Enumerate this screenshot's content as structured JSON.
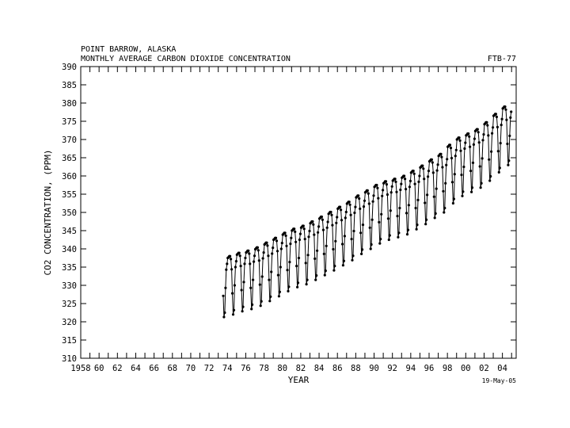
{
  "header": {
    "title": "POINT BARROW, ALASKA",
    "subtitle": "MONTHLY AVERAGE CARBON DIOXIDE CONCENTRATION",
    "code": "FTB-77",
    "date_stamp": "19-May-05"
  },
  "chart_data": {
    "type": "line",
    "xlabel": "YEAR",
    "ylabel": "CO2 CONCENTRATION, (PPM)",
    "xlim": [
      1958,
      2005.5
    ],
    "ylim": [
      310,
      390
    ],
    "x_tick_labels": [
      "1958",
      "60",
      "62",
      "64",
      "66",
      "68",
      "70",
      "72",
      "74",
      "76",
      "78",
      "80",
      "82",
      "84",
      "86",
      "88",
      "90",
      "92",
      "94",
      "96",
      "98",
      "00",
      "02",
      "04"
    ],
    "x_tick_values": [
      1958,
      1960,
      1962,
      1964,
      1966,
      1968,
      1970,
      1972,
      1974,
      1976,
      1978,
      1980,
      1982,
      1984,
      1986,
      1988,
      1990,
      1992,
      1994,
      1996,
      1998,
      2000,
      2002,
      2004
    ],
    "y_tick_labels": [
      "310",
      "315",
      "320",
      "325",
      "330",
      "335",
      "340",
      "345",
      "350",
      "355",
      "360",
      "365",
      "370",
      "375",
      "380",
      "385",
      "390"
    ],
    "y_tick_values": [
      310,
      315,
      320,
      325,
      330,
      335,
      340,
      345,
      350,
      355,
      360,
      365,
      370,
      375,
      380,
      385,
      390
    ],
    "grid": false,
    "marker": "dot",
    "series": [
      {
        "years": [
          1973,
          1974,
          1975,
          1976,
          1977,
          1978,
          1979,
          1980,
          1981,
          1982,
          1983,
          1984,
          1985,
          1986,
          1987,
          1988,
          1989,
          1990,
          1991,
          1992,
          1993,
          1994,
          1995,
          1996,
          1997,
          1998,
          1999,
          2000,
          2001,
          2002,
          2003,
          2004
        ],
        "monthly_pattern": [
          3.5,
          3.7,
          4.0,
          4.0,
          3.2,
          0.4,
          -6.2,
          -12.0,
          -10.8,
          -4.0,
          1.0,
          2.6
        ],
        "annual_baseline": [
          333.3,
          334.0,
          334.9,
          335.5,
          336.4,
          337.7,
          339.0,
          340.4,
          341.5,
          342.3,
          343.5,
          344.8,
          346.1,
          347.5,
          348.9,
          350.6,
          352.0,
          353.5,
          354.5,
          355.2,
          356.0,
          357.4,
          358.8,
          360.5,
          362.0,
          364.5,
          366.5,
          367.6,
          368.8,
          370.7,
          373.0,
          375.0
        ],
        "first_month": 7,
        "last_month": 12
      }
    ]
  }
}
